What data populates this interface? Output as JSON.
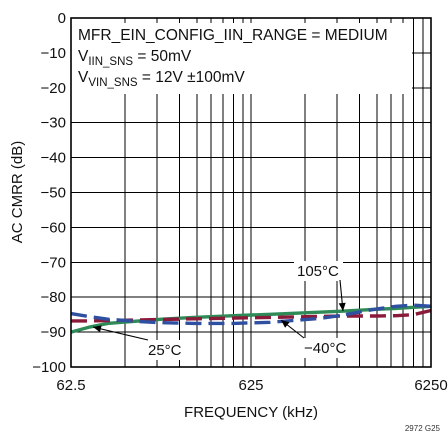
{
  "chart_data": {
    "type": "line",
    "xscale": "log",
    "xlim": [
      62.5,
      6250
    ],
    "ylim": [
      -100,
      0
    ],
    "xlabel": "FREQUENCY (kHz)",
    "ylabel": "AC CMRR (dB)",
    "x_ticks": [
      "62.5",
      "625",
      "6250"
    ],
    "y_ticks": [
      "0",
      "−10",
      "−20",
      "−30",
      "−40",
      "−50",
      "−60",
      "−70",
      "−80",
      "−90",
      "−100"
    ],
    "grid": true,
    "annotation": {
      "line1": "MFR_EIN_CONFIG_IIN_RANGE = MEDIUM",
      "line2_main": "V",
      "line2_sub": "IIN_SNS",
      "line2_rest": " = 50mV",
      "line3_main": "V",
      "line3_sub": "VIN_SNS",
      "line3_rest": " = 12V ±100mV"
    },
    "series": [
      {
        "name": "25°C",
        "color": "#2e8b57",
        "style": "solid",
        "x": [
          62.5,
          80,
          100,
          150,
          200,
          300,
          500,
          800,
          1000,
          1500,
          2000,
          3000,
          4000,
          5000,
          6250
        ],
        "y": [
          -90,
          -88.5,
          -87.5,
          -86.8,
          -86.3,
          -85.8,
          -85.3,
          -84.9,
          -84.7,
          -84.3,
          -84,
          -83.5,
          -83.2,
          -82.9,
          -82.6
        ]
      },
      {
        "name": "−40°C",
        "color": "#8b1a3a",
        "style": "dashed",
        "x": [
          62.5,
          80,
          100,
          150,
          200,
          300,
          500,
          800,
          1000,
          1500,
          2000,
          3000,
          4000,
          5000,
          6250
        ],
        "y": [
          -86.8,
          -86.8,
          -86.7,
          -86.5,
          -86.4,
          -86.2,
          -86,
          -85.8,
          -85.7,
          -85.5,
          -85.4,
          -85.4,
          -85.3,
          -85,
          -83.8
        ]
      },
      {
        "name": "105°C",
        "color": "#2f4fa0",
        "style": "dashed",
        "x": [
          62.5,
          80,
          100,
          150,
          200,
          300,
          500,
          800,
          1000,
          1500,
          2000,
          3000,
          4000,
          5000,
          6250
        ],
        "y": [
          -84.7,
          -85.6,
          -86.3,
          -87,
          -87.3,
          -87.5,
          -87.5,
          -87.2,
          -86.8,
          -86.1,
          -85.2,
          -83.5,
          -82.6,
          -82.3,
          -82.6
        ]
      }
    ],
    "callouts": [
      {
        "label": "25°C",
        "text_x": 148,
        "text_y": 355,
        "tip_x": 93,
        "tip_y": 327
      },
      {
        "label": "−40°C",
        "text_x": 304,
        "text_y": 353,
        "tip_x": 281,
        "tip_y": 320
      },
      {
        "label": "105°C",
        "text_x": 297,
        "text_y": 276,
        "tip_x": 343,
        "tip_y": 311
      }
    ],
    "figure_id": "2972 G25"
  }
}
